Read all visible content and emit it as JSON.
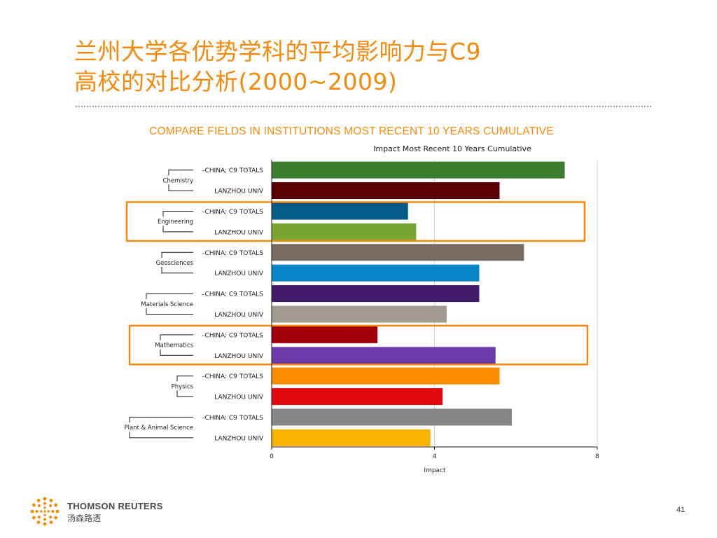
{
  "slide": {
    "title_line1": "兰州大学各优势学科的平均影响力与C9",
    "title_line2": "高校的对比分析(2000~2009)",
    "chart_heading": "COMPARE FIELDS IN INSTITUTIONS MOST RECENT 10 YEARS CUMULATIVE",
    "page_number": "41"
  },
  "brand": {
    "name": "THOMSON REUTERS",
    "name_cn": "汤森路透"
  },
  "highlight_color": "#f58a0a",
  "highlighted_fields": [
    "Engineering",
    "Mathematics"
  ],
  "chart_data": {
    "type": "bar",
    "orientation": "horizontal",
    "title": "Impact Most Recent 10 Years Cumulative",
    "xlabel": "Impact",
    "ylabel": "",
    "xlim": [
      0,
      8
    ],
    "xticks": [
      "0",
      "4",
      "8"
    ],
    "grid": "vertical",
    "groups": [
      {
        "field": "Chemistry",
        "bars": [
          {
            "label": "CHINA: C9 TOTALS",
            "value": 7.2,
            "color": "#3b7d2f"
          },
          {
            "label": "LANZHOU UNIV",
            "value": 5.6,
            "color": "#5a0005"
          }
        ]
      },
      {
        "field": "Engineering",
        "bars": [
          {
            "label": "CHINA: C9 TOTALS",
            "value": 3.35,
            "color": "#055a86"
          },
          {
            "label": "LANZHOU UNIV",
            "value": 3.55,
            "color": "#7aa533"
          }
        ]
      },
      {
        "field": "Geosciences",
        "bars": [
          {
            "label": "CHINA: C9 TOTALS",
            "value": 6.2,
            "color": "#786c63"
          },
          {
            "label": "LANZHOU UNIV",
            "value": 5.1,
            "color": "#0585c5"
          }
        ]
      },
      {
        "field": "Materials Science",
        "bars": [
          {
            "label": "CHINA: C9 TOTALS",
            "value": 5.1,
            "color": "#421a6a"
          },
          {
            "label": "LANZHOU UNIV",
            "value": 4.3,
            "color": "#a29a91"
          }
        ]
      },
      {
        "field": "Mathematics",
        "bars": [
          {
            "label": "CHINA: C9 TOTALS",
            "value": 2.6,
            "color": "#a0000a"
          },
          {
            "label": "LANZHOU UNIV",
            "value": 5.5,
            "color": "#6b3aaa"
          }
        ]
      },
      {
        "field": "Physics",
        "bars": [
          {
            "label": "CHINA: C9 TOTALS",
            "value": 5.6,
            "color": "#fc8e00"
          },
          {
            "label": "LANZHOU UNIV",
            "value": 4.2,
            "color": "#e0080e"
          }
        ]
      },
      {
        "field": "Plant & Animal Science",
        "bars": [
          {
            "label": "CHINA: C9 TOTALS",
            "value": 5.9,
            "color": "#868686"
          },
          {
            "label": "LANZHOU UNIV",
            "value": 3.9,
            "color": "#fbb400"
          }
        ]
      }
    ]
  }
}
